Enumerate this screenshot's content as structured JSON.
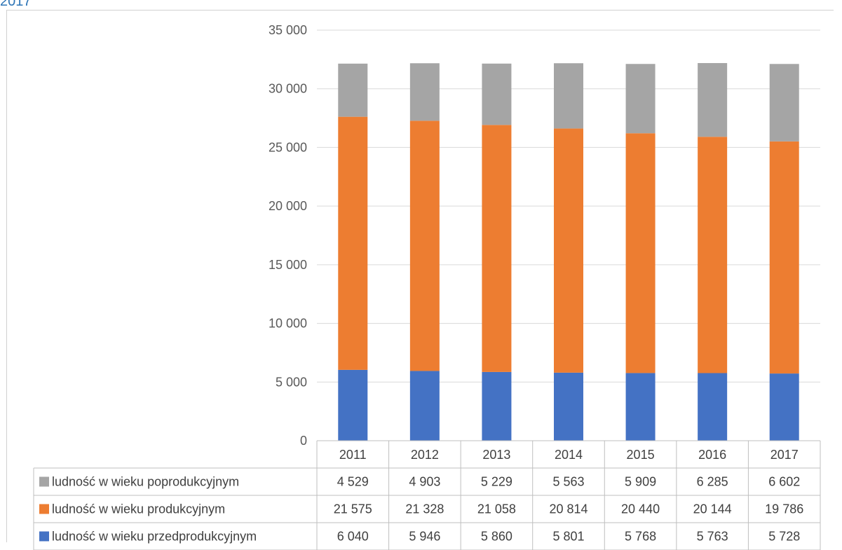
{
  "header": {
    "caption": "2017"
  },
  "chart_data": {
    "type": "bar",
    "stacked": true,
    "categories": [
      "2011",
      "2012",
      "2013",
      "2014",
      "2015",
      "2016",
      "2017"
    ],
    "series": [
      {
        "name": "ludność w wieku przedprodukcyjnym",
        "color": "#4472c4",
        "values": [
          6040,
          5946,
          5860,
          5801,
          5768,
          5763,
          5728
        ],
        "labels": [
          "6 040",
          "5 946",
          "5 860",
          "5 801",
          "5 768",
          "5 763",
          "5 728"
        ]
      },
      {
        "name": "ludność w wieku produkcyjnym",
        "color": "#ed7d31",
        "values": [
          21575,
          21328,
          21058,
          20814,
          20440,
          20144,
          19786
        ],
        "labels": [
          "21 575",
          "21 328",
          "21 058",
          "20 814",
          "20 440",
          "20 144",
          "19 786"
        ]
      },
      {
        "name": "ludność w wieku poprodukcyjnym",
        "color": "#a5a5a5",
        "values": [
          4529,
          4903,
          5229,
          5563,
          5909,
          6285,
          6602
        ],
        "labels": [
          "4 529",
          "4 903",
          "5 229",
          "5 563",
          "5 909",
          "6 285",
          "6 602"
        ]
      }
    ],
    "table_row_order": [
      2,
      1,
      0
    ],
    "yticks": [
      0,
      5000,
      10000,
      15000,
      20000,
      25000,
      30000,
      35000
    ],
    "ytick_labels": [
      "0",
      "5 000",
      "10 000",
      "15 000",
      "20 000",
      "25 000",
      "30 000",
      "35 000"
    ],
    "ylim": [
      0,
      35000
    ],
    "grid": true,
    "legend": "data table"
  }
}
